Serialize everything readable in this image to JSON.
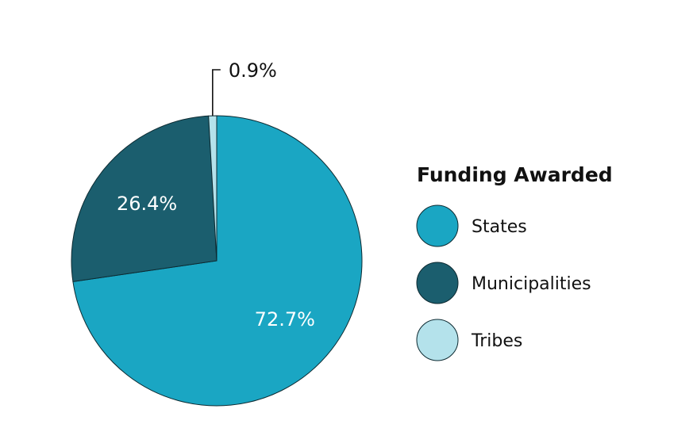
{
  "chart_data": {
    "type": "pie",
    "title": "",
    "legend": {
      "title": "Funding Awarded",
      "placement": "right"
    },
    "slices": [
      {
        "name": "States",
        "value": 72.7,
        "label": "72.7%",
        "color": "#1AA6C3"
      },
      {
        "name": "Municipalities",
        "value": 26.4,
        "label": "26.4%",
        "color": "#1B5E6E"
      },
      {
        "name": "Tribes",
        "value": 0.9,
        "label": "0.9%",
        "color": "#B4E2EB"
      }
    ],
    "start_angle_deg": 0,
    "direction": "clockwise"
  }
}
